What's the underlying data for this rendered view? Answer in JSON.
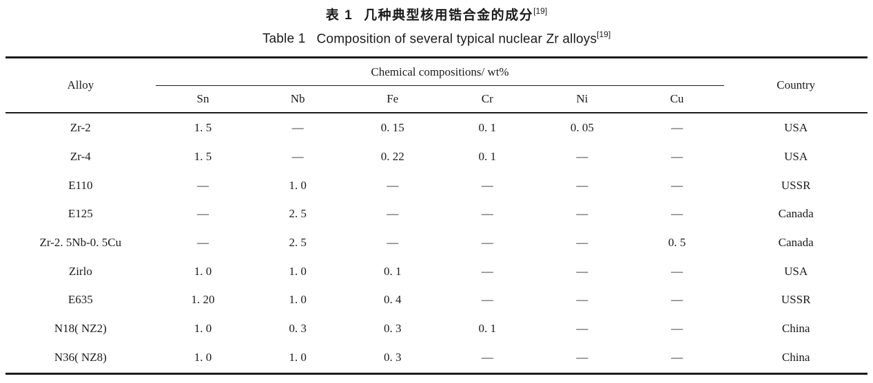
{
  "caption": {
    "zh": {
      "label": "表 1",
      "text": "几种典型核用锆合金的成分",
      "ref": "[19]"
    },
    "en": {
      "label": "Table 1",
      "text": "Composition of several typical nuclear Zr alloys",
      "ref": "[19]"
    }
  },
  "table": {
    "header": {
      "alloy": "Alloy",
      "group": "Chemical compositions/ wt%",
      "elements": [
        "Sn",
        "Nb",
        "Fe",
        "Cr",
        "Ni",
        "Cu"
      ],
      "country": "Country"
    },
    "rows": [
      {
        "alloy": "Zr-2",
        "values": [
          "1. 5",
          "—",
          "0. 15",
          "0. 1",
          "0. 05",
          "—"
        ],
        "country": "USA"
      },
      {
        "alloy": "Zr-4",
        "values": [
          "1. 5",
          "—",
          "0. 22",
          "0. 1",
          "—",
          "—"
        ],
        "country": "USA"
      },
      {
        "alloy": "E110",
        "values": [
          "—",
          "1. 0",
          "—",
          "—",
          "—",
          "—"
        ],
        "country": "USSR"
      },
      {
        "alloy": "E125",
        "values": [
          "—",
          "2. 5",
          "—",
          "—",
          "—",
          "—"
        ],
        "country": "Canada"
      },
      {
        "alloy": "Zr-2. 5Nb-0. 5Cu",
        "values": [
          "—",
          "2. 5",
          "—",
          "—",
          "—",
          "0. 5"
        ],
        "country": "Canada"
      },
      {
        "alloy": "Zirlo",
        "values": [
          "1. 0",
          "1. 0",
          "0. 1",
          "—",
          "—",
          "—"
        ],
        "country": "USA"
      },
      {
        "alloy": "E635",
        "values": [
          "1. 20",
          "1. 0",
          "0. 4",
          "—",
          "—",
          "—"
        ],
        "country": "USSR"
      },
      {
        "alloy": "N18( NZ2)",
        "values": [
          "1. 0",
          "0. 3",
          "0. 3",
          "0. 1",
          "—",
          "—"
        ],
        "country": "China"
      },
      {
        "alloy": "N36( NZ8)",
        "values": [
          "1. 0",
          "1. 0",
          "0. 3",
          "—",
          "—",
          "—"
        ],
        "country": "China"
      }
    ]
  }
}
